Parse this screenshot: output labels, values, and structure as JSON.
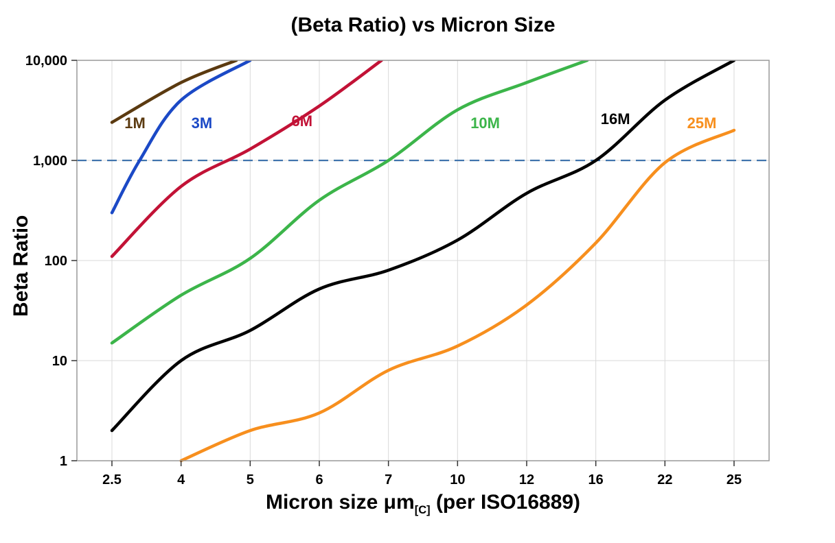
{
  "chart_data": {
    "type": "line",
    "title": "(Beta Ratio) vs Micron Size",
    "ylabel": "Beta Ratio",
    "xlabel": {
      "main": "Micron size μm",
      "sub": "[C]",
      "suffix": " (per ISO16889)"
    },
    "y_scale": "log",
    "ylim": [
      1,
      10000
    ],
    "y_ticks": [
      {
        "value": 1,
        "label": "1"
      },
      {
        "value": 10,
        "label": "10"
      },
      {
        "value": 100,
        "label": "100"
      },
      {
        "value": 1000,
        "label": "1,000"
      },
      {
        "value": 10000,
        "label": "10,000"
      }
    ],
    "x_categories": [
      2.5,
      4,
      5,
      6,
      7,
      10,
      12,
      16,
      22,
      25
    ],
    "x_tick_labels": [
      "2.5",
      "4",
      "5",
      "6",
      "7",
      "10",
      "12",
      "16",
      "22",
      "25"
    ],
    "grid": true,
    "reference_line": {
      "value": 1000,
      "style": "dashed",
      "color": "#4174ad"
    },
    "series": [
      {
        "name": "1M",
        "color": "#5b3a10",
        "points": [
          [
            2.5,
            2400
          ],
          [
            4,
            6000
          ],
          [
            4.8,
            10000
          ]
        ]
      },
      {
        "name": "3M",
        "color": "#1b49c6",
        "points": [
          [
            2.5,
            300
          ],
          [
            3.1,
            1000
          ],
          [
            4,
            4000
          ],
          [
            5,
            10000
          ]
        ]
      },
      {
        "name": "6M",
        "color": "#c21236",
        "points": [
          [
            2.5,
            110
          ],
          [
            4,
            550
          ],
          [
            5,
            1300
          ],
          [
            6,
            3500
          ],
          [
            6.9,
            10000
          ]
        ]
      },
      {
        "name": "10M",
        "color": "#3cb54a",
        "points": [
          [
            2.5,
            15
          ],
          [
            4,
            45
          ],
          [
            5,
            105
          ],
          [
            6,
            400
          ],
          [
            7,
            1000
          ],
          [
            10,
            3200
          ],
          [
            12,
            6000
          ],
          [
            15.5,
            10000
          ]
        ]
      },
      {
        "name": "16M",
        "color": "#000000",
        "points": [
          [
            2.5,
            2
          ],
          [
            4,
            10
          ],
          [
            5,
            20
          ],
          [
            6,
            52
          ],
          [
            7,
            80
          ],
          [
            10,
            160
          ],
          [
            12,
            470
          ],
          [
            16,
            1000
          ],
          [
            22,
            4000
          ],
          [
            25,
            10000
          ]
        ]
      },
      {
        "name": "25M",
        "color": "#f78f1e",
        "points": [
          [
            4,
            1
          ],
          [
            5,
            2
          ],
          [
            6,
            3
          ],
          [
            7,
            8
          ],
          [
            10,
            14
          ],
          [
            12,
            36
          ],
          [
            16,
            150
          ],
          [
            22,
            950
          ],
          [
            25,
            2000
          ]
        ]
      }
    ],
    "series_labels": [
      {
        "text": "1M",
        "color": "#5b3a10",
        "x": 3.0,
        "y": 2100
      },
      {
        "text": "3M",
        "color": "#1b49c6",
        "x": 4.3,
        "y": 2100
      },
      {
        "text": "6M",
        "color": "#c21236",
        "x": 5.75,
        "y": 2200
      },
      {
        "text": "10M",
        "color": "#3cb54a",
        "x": 10.8,
        "y": 2100
      },
      {
        "text": "16M",
        "color": "#000000",
        "x": 17.7,
        "y": 2300
      },
      {
        "text": "25M",
        "color": "#f78f1e",
        "x": 23.6,
        "y": 2100
      }
    ],
    "colors": {
      "grid": "#d9d9d9",
      "border": "#999999",
      "tick": "#333333"
    }
  }
}
